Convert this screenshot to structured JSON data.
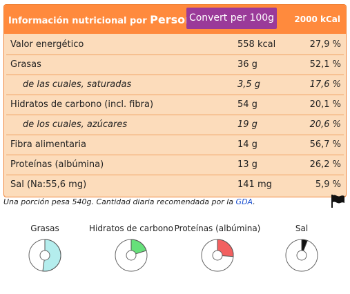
{
  "header": {
    "title_prefix": "Información nutricional por",
    "title_name": "Person",
    "convert_label": "Convert per 100g",
    "kcal_label": "2000 kCal"
  },
  "rows": [
    {
      "name": "Valor energético",
      "amount": "558 kcal",
      "pct": "27,9 %"
    },
    {
      "name": "Grasas",
      "amount": "36 g",
      "pct": "52,1 %"
    },
    {
      "name": "de las cuales, saturadas",
      "amount": "3,5 g",
      "pct": "17,6 %"
    },
    {
      "name": "Hidratos de carbono (incl. fibra)",
      "amount": "54 g",
      "pct": "20,1 %"
    },
    {
      "name": "de los cuales, azúcares",
      "amount": "19 g",
      "pct": "20,6 %"
    },
    {
      "name": "Fibra alimentaria",
      "amount": "14 g",
      "pct": "56,7 %"
    },
    {
      "name": "Proteínas (albúmina)",
      "amount": "13 g",
      "pct": "26,2 %"
    },
    {
      "name": "Sal (Na:55,6 mg)",
      "amount": "141 mg",
      "pct": "5,9 %"
    }
  ],
  "footnote": {
    "text": "Una porción pesa 540g.   Cantidad diaria recomendada por la ",
    "link": "GDA",
    "end": "."
  },
  "flag_icon": "flag-icon",
  "charts": [
    {
      "label": "Grasas",
      "fraction": 0.521,
      "color": "#b4eded"
    },
    {
      "label": "Hidratos de carbono",
      "fraction": 0.201,
      "color": "#66e07a"
    },
    {
      "label": "Proteínas (albúmina)",
      "fraction": 0.262,
      "color": "#f26060"
    },
    {
      "label": "Sal",
      "fraction": 0.059,
      "color": "#111111"
    }
  ],
  "colors": {
    "header": "#ff8a3d",
    "panel": "#fcdcbb",
    "button": "#9a3a99",
    "link": "#1a4fd0"
  }
}
